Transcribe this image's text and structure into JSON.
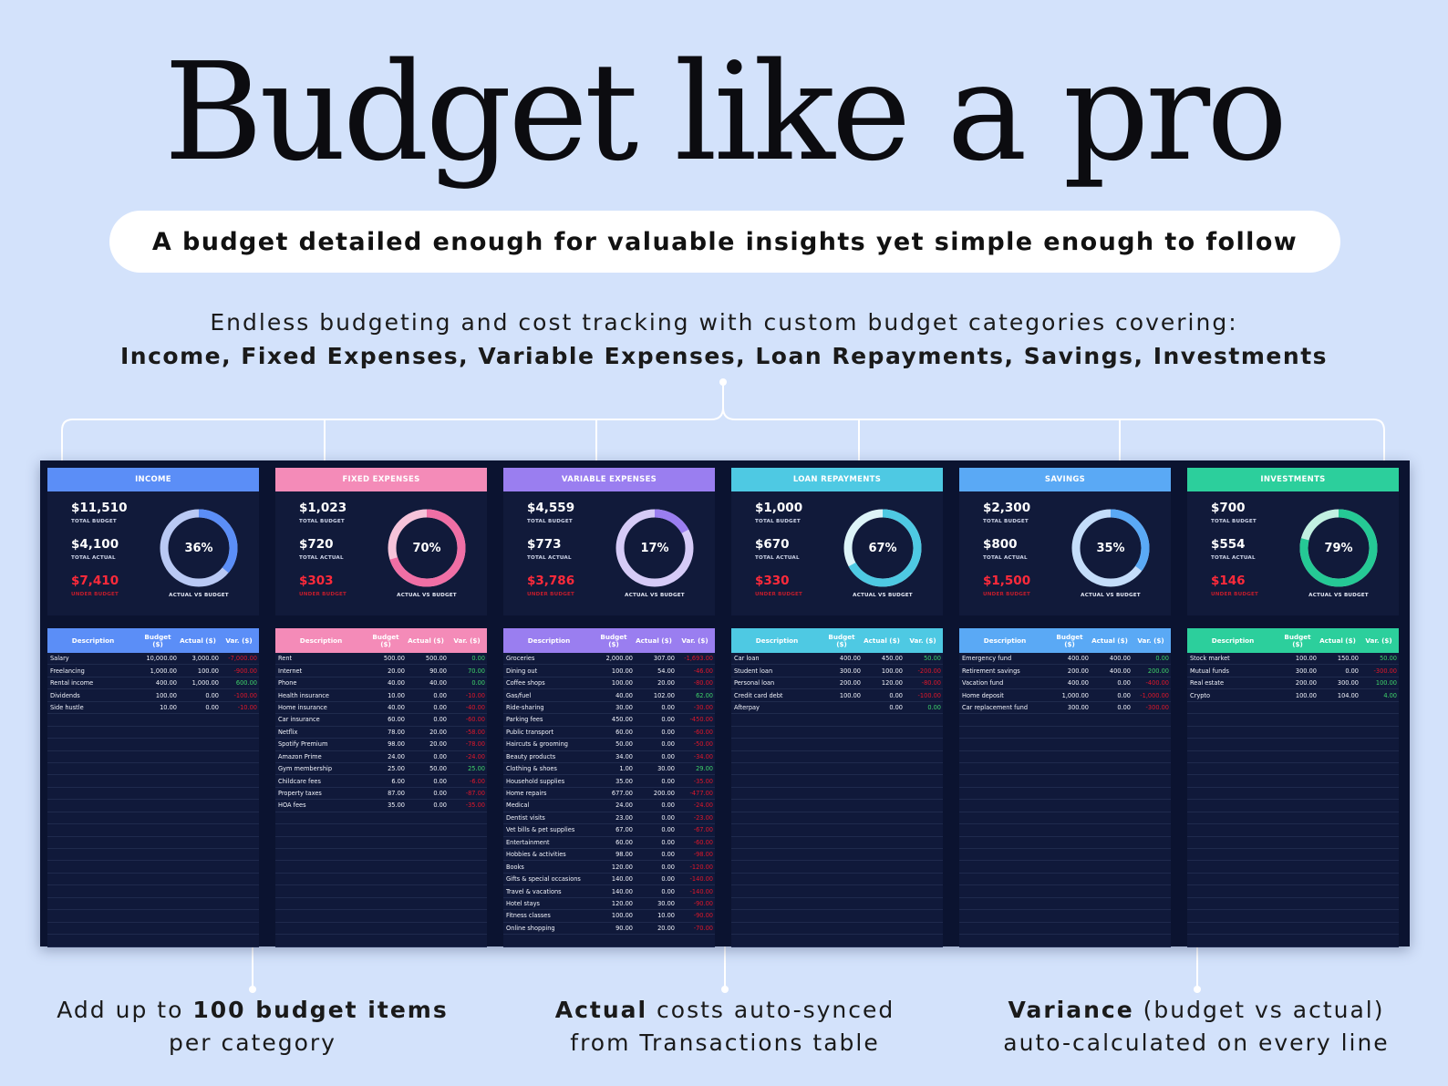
{
  "hero": {
    "title": "Budget like a pro",
    "tagline": "A budget detailed enough for valuable insights yet simple enough to follow"
  },
  "intro": {
    "line1": "Endless budgeting and cost tracking with custom budget categories covering:",
    "line2": "Income, Fixed Expenses, Variable Expenses, Loan Repayments, Savings, Investments"
  },
  "labels": {
    "total_budget": "TOTAL BUDGET",
    "total_actual": "TOTAL ACTUAL",
    "under_budget": "UNDER BUDGET",
    "actual_vs_budget": "ACTUAL VS BUDGET",
    "col_description": "Description",
    "col_budget": "Budget ($)",
    "col_actual": "Actual ($)",
    "col_var": "Var. ($)"
  },
  "categories": [
    {
      "name": "INCOME",
      "color": "#5b8ef7",
      "ring": "#5b8ef7",
      "ring_bg": "#b9c9f4",
      "total_budget": "$11,510",
      "total_actual": "$4,100",
      "under_budget": "$7,410",
      "pct": "36%",
      "pct_value": 0.36,
      "rows": [
        [
          "Salary",
          "10,000.00",
          "3,000.00",
          "-7,000.00",
          "neg"
        ],
        [
          "Freelancing",
          "1,000.00",
          "100.00",
          "-900.00",
          "neg"
        ],
        [
          "Rental income",
          "400.00",
          "1,000.00",
          "600.00",
          "pos"
        ],
        [
          "Dividends",
          "100.00",
          "0.00",
          "-100.00",
          "neg"
        ],
        [
          "Side hustle",
          "10.00",
          "0.00",
          "-10.00",
          "neg"
        ]
      ]
    },
    {
      "name": "FIXED EXPENSES",
      "color": "#f48bb8",
      "ring": "#f06fa5",
      "ring_bg": "#f6c4da",
      "total_budget": "$1,023",
      "total_actual": "$720",
      "under_budget": "$303",
      "pct": "70%",
      "pct_value": 0.7,
      "rows": [
        [
          "Rent",
          "500.00",
          "500.00",
          "0.00",
          "zero"
        ],
        [
          "Internet",
          "20.00",
          "90.00",
          "70.00",
          "pos"
        ],
        [
          "Phone",
          "40.00",
          "40.00",
          "0.00",
          "zero"
        ],
        [
          "Health insurance",
          "10.00",
          "0.00",
          "-10.00",
          "neg"
        ],
        [
          "Home insurance",
          "40.00",
          "0.00",
          "-40.00",
          "neg"
        ],
        [
          "Car insurance",
          "60.00",
          "0.00",
          "-60.00",
          "neg"
        ],
        [
          "Netflix",
          "78.00",
          "20.00",
          "-58.00",
          "neg"
        ],
        [
          "Spotify Premium",
          "98.00",
          "20.00",
          "-78.00",
          "neg"
        ],
        [
          "Amazon Prime",
          "24.00",
          "0.00",
          "-24.00",
          "neg"
        ],
        [
          "Gym membership",
          "25.00",
          "50.00",
          "25.00",
          "pos"
        ],
        [
          "Childcare fees",
          "6.00",
          "0.00",
          "-6.00",
          "neg"
        ],
        [
          "Property taxes",
          "87.00",
          "0.00",
          "-87.00",
          "neg"
        ],
        [
          "HOA fees",
          "35.00",
          "0.00",
          "-35.00",
          "neg"
        ]
      ]
    },
    {
      "name": "VARIABLE EXPENSES",
      "color": "#9a7ef0",
      "ring": "#9a7ef0",
      "ring_bg": "#d6cbf7",
      "total_budget": "$4,559",
      "total_actual": "$773",
      "under_budget": "$3,786",
      "pct": "17%",
      "pct_value": 0.17,
      "rows": [
        [
          "Groceries",
          "2,000.00",
          "307.00",
          "-1,693.00",
          "neg"
        ],
        [
          "Dining out",
          "100.00",
          "54.00",
          "-46.00",
          "neg"
        ],
        [
          "Coffee shops",
          "100.00",
          "20.00",
          "-80.00",
          "neg"
        ],
        [
          "Gas/fuel",
          "40.00",
          "102.00",
          "62.00",
          "pos"
        ],
        [
          "Ride-sharing",
          "30.00",
          "0.00",
          "-30.00",
          "neg"
        ],
        [
          "Parking fees",
          "450.00",
          "0.00",
          "-450.00",
          "neg"
        ],
        [
          "Public transport",
          "60.00",
          "0.00",
          "-60.00",
          "neg"
        ],
        [
          "Haircuts & grooming",
          "50.00",
          "0.00",
          "-50.00",
          "neg"
        ],
        [
          "Beauty products",
          "34.00",
          "0.00",
          "-34.00",
          "neg"
        ],
        [
          "Clothing & shoes",
          "1.00",
          "30.00",
          "29.00",
          "pos"
        ],
        [
          "Household supplies",
          "35.00",
          "0.00",
          "-35.00",
          "neg"
        ],
        [
          "Home repairs",
          "677.00",
          "200.00",
          "-477.00",
          "neg"
        ],
        [
          "Medical",
          "24.00",
          "0.00",
          "-24.00",
          "neg"
        ],
        [
          "Dentist visits",
          "23.00",
          "0.00",
          "-23.00",
          "neg"
        ],
        [
          "Vet bills & pet supplies",
          "67.00",
          "0.00",
          "-67.00",
          "neg"
        ],
        [
          "Entertainment",
          "60.00",
          "0.00",
          "-60.00",
          "neg"
        ],
        [
          "Hobbies & activities",
          "98.00",
          "0.00",
          "-98.00",
          "neg"
        ],
        [
          "Books",
          "120.00",
          "0.00",
          "-120.00",
          "neg"
        ],
        [
          "Gifts & special occasions",
          "140.00",
          "0.00",
          "-140.00",
          "neg"
        ],
        [
          "Travel & vacations",
          "140.00",
          "0.00",
          "-140.00",
          "neg"
        ],
        [
          "Hotel stays",
          "120.00",
          "30.00",
          "-90.00",
          "neg"
        ],
        [
          "Fitness classes",
          "100.00",
          "10.00",
          "-90.00",
          "neg"
        ],
        [
          "Online shopping",
          "90.00",
          "20.00",
          "-70.00",
          "neg"
        ]
      ]
    },
    {
      "name": "LOAN REPAYMENTS",
      "color": "#4ec9e3",
      "ring": "#4ec9e3",
      "ring_bg": "#ddf4f8",
      "total_budget": "$1,000",
      "total_actual": "$670",
      "under_budget": "$330",
      "pct": "67%",
      "pct_value": 0.67,
      "rows": [
        [
          "Car loan",
          "400.00",
          "450.00",
          "50.00",
          "pos"
        ],
        [
          "Student loan",
          "300.00",
          "100.00",
          "-200.00",
          "neg"
        ],
        [
          "Personal loan",
          "200.00",
          "120.00",
          "-80.00",
          "neg"
        ],
        [
          "Credit card debt",
          "100.00",
          "0.00",
          "-100.00",
          "neg"
        ],
        [
          "Afterpay",
          "",
          "0.00",
          "0.00",
          "zero"
        ]
      ]
    },
    {
      "name": "SAVINGS",
      "color": "#5aa9f5",
      "ring": "#5aa9f5",
      "ring_bg": "#c4ddfa",
      "total_budget": "$2,300",
      "total_actual": "$800",
      "under_budget": "$1,500",
      "pct": "35%",
      "pct_value": 0.35,
      "rows": [
        [
          "Emergency fund",
          "400.00",
          "400.00",
          "0.00",
          "zero"
        ],
        [
          "Retirement savings",
          "200.00",
          "400.00",
          "200.00",
          "pos"
        ],
        [
          "Vacation fund",
          "400.00",
          "0.00",
          "-400.00",
          "neg"
        ],
        [
          "Home deposit",
          "1,000.00",
          "0.00",
          "-1,000.00",
          "neg"
        ],
        [
          "Car replacement fund",
          "300.00",
          "0.00",
          "-300.00",
          "neg"
        ]
      ]
    },
    {
      "name": "INVESTMENTS",
      "color": "#2ccf9c",
      "ring": "#25c995",
      "ring_bg": "#c2f0e1",
      "total_budget": "$700",
      "total_actual": "$554",
      "under_budget": "$146",
      "pct": "79%",
      "pct_value": 0.79,
      "rows": [
        [
          "Stock market",
          "100.00",
          "150.00",
          "50.00",
          "pos"
        ],
        [
          "Mutual funds",
          "300.00",
          "0.00",
          "-300.00",
          "neg"
        ],
        [
          "Real estate",
          "200.00",
          "300.00",
          "100.00",
          "pos"
        ],
        [
          "Crypto",
          "100.00",
          "104.00",
          "4.00",
          "pos"
        ]
      ]
    }
  ],
  "callouts": {
    "left": {
      "pre": "Add up to ",
      "bold": "100 budget items",
      "line2": "per category"
    },
    "center": {
      "bold": "Actual",
      "post": " costs auto-synced",
      "line2": "from Transactions table"
    },
    "right": {
      "bold": "Variance",
      "post": " (budget vs actual)",
      "line2": "auto-calculated on every line"
    }
  }
}
